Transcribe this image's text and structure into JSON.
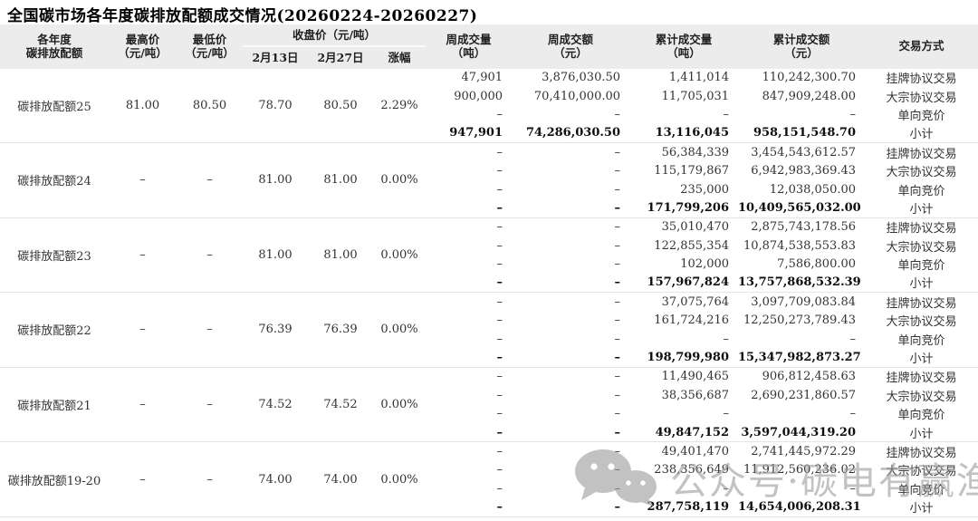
{
  "title": "全国碳市场各年度碳排放配额成交情况(20260224-20260227)",
  "watermark": {
    "text": "公众号·碳电有赢渔",
    "icon": "wechat-icon"
  },
  "headers": {
    "name_l1": "各年度",
    "name_l2": "碳排放配额",
    "high_l1": "最高价",
    "high_l2": "（元/吨）",
    "low_l1": "最低价",
    "low_l2": "（元/吨）",
    "close_group": "收盘价（元/吨）",
    "close_feb13": "2月13日",
    "close_feb27": "2月27日",
    "change": "涨幅",
    "weekly_volume_l1": "周成交量",
    "weekly_volume_l2": "（吨）",
    "weekly_amount_l1": "周成交额",
    "weekly_amount_l2": "（元）",
    "cum_volume_l1": "累计成交量",
    "cum_volume_l2": "（吨）",
    "cum_amount_l1": "累计成交额",
    "cum_amount_l2": "（元）",
    "method": "交易方式"
  },
  "chart_data": {
    "type": "table",
    "title": "全国碳市场各年度碳排放配额成交情况(20260224-20260227)",
    "columns": [
      "各年度碳排放配额",
      "最高价（元/吨）",
      "最低价（元/吨）",
      "收盘价（元/吨）2月13日",
      "收盘价（元/吨）2月27日",
      "涨幅",
      "周成交量（吨）",
      "周成交额（元）",
      "累计成交量（吨）",
      "累计成交额（元）",
      "交易方式"
    ],
    "groups": [
      {
        "name": "碳排放配额25",
        "high": "81.00",
        "low": "80.50",
        "close_feb13": "78.70",
        "close_feb27": "80.50",
        "change": "2.29%",
        "rows": [
          {
            "weekly_volume": "47,901",
            "weekly_amount": "3,876,030.50",
            "cum_volume": "1,411,014",
            "cum_amount": "110,242,300.70",
            "method": "挂牌协议交易"
          },
          {
            "weekly_volume": "900,000",
            "weekly_amount": "70,410,000.00",
            "cum_volume": "11,705,031",
            "cum_amount": "847,909,248.00",
            "method": "大宗协议交易"
          },
          {
            "weekly_volume": "–",
            "weekly_amount": "–",
            "cum_volume": "–",
            "cum_amount": "–",
            "method": "单向竞价"
          },
          {
            "weekly_volume": "947,901",
            "weekly_amount": "74,286,030.50",
            "cum_volume": "13,116,045",
            "cum_amount": "958,151,548.70",
            "method": "小计",
            "is_subtotal": true
          }
        ]
      },
      {
        "name": "碳排放配额24",
        "high": "–",
        "low": "–",
        "close_feb13": "81.00",
        "close_feb27": "81.00",
        "change": "0.00%",
        "rows": [
          {
            "weekly_volume": "–",
            "weekly_amount": "–",
            "cum_volume": "56,384,339",
            "cum_amount": "3,454,543,612.57",
            "method": "挂牌协议交易"
          },
          {
            "weekly_volume": "–",
            "weekly_amount": "–",
            "cum_volume": "115,179,867",
            "cum_amount": "6,942,983,369.43",
            "method": "大宗协议交易"
          },
          {
            "weekly_volume": "–",
            "weekly_amount": "–",
            "cum_volume": "235,000",
            "cum_amount": "12,038,050.00",
            "method": "单向竞价"
          },
          {
            "weekly_volume": "–",
            "weekly_amount": "–",
            "cum_volume": "171,799,206",
            "cum_amount": "10,409,565,032.00",
            "method": "小计",
            "is_subtotal": true
          }
        ]
      },
      {
        "name": "碳排放配额23",
        "high": "–",
        "low": "–",
        "close_feb13": "81.00",
        "close_feb27": "81.00",
        "change": "0.00%",
        "rows": [
          {
            "weekly_volume": "–",
            "weekly_amount": "–",
            "cum_volume": "35,010,470",
            "cum_amount": "2,875,743,178.56",
            "method": "挂牌协议交易"
          },
          {
            "weekly_volume": "–",
            "weekly_amount": "–",
            "cum_volume": "122,855,354",
            "cum_amount": "10,874,538,553.83",
            "method": "大宗协议交易"
          },
          {
            "weekly_volume": "–",
            "weekly_amount": "–",
            "cum_volume": "102,000",
            "cum_amount": "7,586,800.00",
            "method": "单向竞价"
          },
          {
            "weekly_volume": "–",
            "weekly_amount": "–",
            "cum_volume": "157,967,824",
            "cum_amount": "13,757,868,532.39",
            "method": "小计",
            "is_subtotal": true
          }
        ]
      },
      {
        "name": "碳排放配额22",
        "high": "–",
        "low": "–",
        "close_feb13": "76.39",
        "close_feb27": "76.39",
        "change": "0.00%",
        "rows": [
          {
            "weekly_volume": "–",
            "weekly_amount": "–",
            "cum_volume": "37,075,764",
            "cum_amount": "3,097,709,083.84",
            "method": "挂牌协议交易"
          },
          {
            "weekly_volume": "–",
            "weekly_amount": "–",
            "cum_volume": "161,724,216",
            "cum_amount": "12,250,273,789.43",
            "method": "大宗协议交易"
          },
          {
            "weekly_volume": "–",
            "weekly_amount": "–",
            "cum_volume": "–",
            "cum_amount": "–",
            "method": "单向竞价"
          },
          {
            "weekly_volume": "–",
            "weekly_amount": "–",
            "cum_volume": "198,799,980",
            "cum_amount": "15,347,982,873.27",
            "method": "小计",
            "is_subtotal": true
          }
        ]
      },
      {
        "name": "碳排放配额21",
        "high": "–",
        "low": "–",
        "close_feb13": "74.52",
        "close_feb27": "74.52",
        "change": "0.00%",
        "rows": [
          {
            "weekly_volume": "–",
            "weekly_amount": "–",
            "cum_volume": "11,490,465",
            "cum_amount": "906,812,458.63",
            "method": "挂牌协议交易"
          },
          {
            "weekly_volume": "–",
            "weekly_amount": "–",
            "cum_volume": "38,356,687",
            "cum_amount": "2,690,231,860.57",
            "method": "大宗协议交易"
          },
          {
            "weekly_volume": "–",
            "weekly_amount": "–",
            "cum_volume": "–",
            "cum_amount": "–",
            "method": "单向竞价"
          },
          {
            "weekly_volume": "–",
            "weekly_amount": "–",
            "cum_volume": "49,847,152",
            "cum_amount": "3,597,044,319.20",
            "method": "小计",
            "is_subtotal": true
          }
        ]
      },
      {
        "name": "碳排放配额19-20",
        "high": "–",
        "low": "–",
        "close_feb13": "74.00",
        "close_feb27": "74.00",
        "change": "0.00%",
        "rows": [
          {
            "weekly_volume": "–",
            "weekly_amount": "–",
            "cum_volume": "49,401,470",
            "cum_amount": "2,741,445,972.29",
            "method": "挂牌协议交易"
          },
          {
            "weekly_volume": "–",
            "weekly_amount": "–",
            "cum_volume": "238,356,649",
            "cum_amount": "11,912,560,236.02",
            "method": "大宗协议交易"
          },
          {
            "weekly_volume": "–",
            "weekly_amount": "–",
            "cum_volume": "–",
            "cum_amount": "–",
            "method": "单向竞价"
          },
          {
            "weekly_volume": "–",
            "weekly_amount": "–",
            "cum_volume": "287,758,119",
            "cum_amount": "14,654,006,208.31",
            "method": "小计",
            "is_subtotal": true
          }
        ]
      }
    ]
  }
}
